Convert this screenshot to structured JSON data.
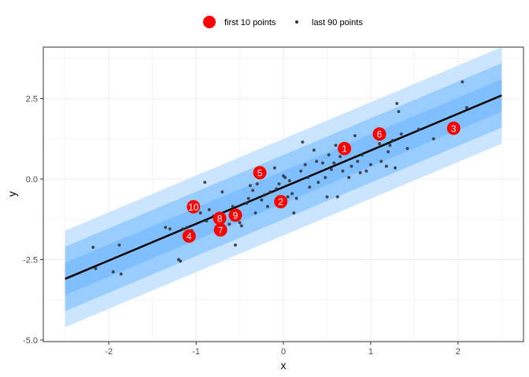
{
  "chart_data": {
    "type": "scatter",
    "title": "",
    "xlabel": "x",
    "ylabel": "y",
    "xlim": [
      -2.75,
      2.75
    ],
    "ylim": [
      -5.05,
      4.1
    ],
    "x_ticks": [
      -2,
      -1,
      0,
      1,
      2
    ],
    "x_tick_labels": [
      "-2",
      "-1",
      "0",
      "1",
      "2"
    ],
    "y_ticks": [
      -5.0,
      -2.5,
      0.0,
      2.5
    ],
    "y_tick_labels": [
      "-5.0",
      "-2.5",
      "0.0",
      "2.5"
    ],
    "grid": true,
    "legend": {
      "placement": "top",
      "entries": [
        "first 10 points",
        "last 90 points"
      ]
    },
    "fit_line": {
      "x": [
        -2.5,
        2.5
      ],
      "y": [
        -3.1,
        2.6
      ]
    },
    "bands": [
      {
        "level": "outer",
        "offset": 1.5
      },
      {
        "level": "middle",
        "offset": 1.0
      },
      {
        "level": "inner",
        "offset": 0.5
      }
    ],
    "series": [
      {
        "name": "first 10 points",
        "points": [
          {
            "label": "1",
            "x": 0.7,
            "y": 0.95
          },
          {
            "label": "2",
            "x": -0.03,
            "y": -0.7
          },
          {
            "label": "3",
            "x": 1.95,
            "y": 1.58
          },
          {
            "label": "4",
            "x": -1.08,
            "y": -1.77
          },
          {
            "label": "5",
            "x": -0.27,
            "y": 0.2
          },
          {
            "label": "6",
            "x": 1.1,
            "y": 1.4
          },
          {
            "label": "7",
            "x": -0.72,
            "y": -1.58
          },
          {
            "label": "8",
            "x": -0.73,
            "y": -1.22
          },
          {
            "label": "9",
            "x": -0.55,
            "y": -1.12
          },
          {
            "label": "10",
            "x": -1.03,
            "y": -0.86
          }
        ]
      },
      {
        "name": "last 90 points",
        "points": [
          [
            -2.18,
            -2.12
          ],
          [
            -2.15,
            -2.78
          ],
          [
            -1.95,
            -2.88
          ],
          [
            -1.88,
            -2.05
          ],
          [
            -1.86,
            -2.95
          ],
          [
            -1.35,
            -1.5
          ],
          [
            -1.3,
            -1.55
          ],
          [
            -1.2,
            -2.5
          ],
          [
            -1.18,
            -2.55
          ],
          [
            -1.15,
            -1.55
          ],
          [
            -1.1,
            -1.5
          ],
          [
            -1.05,
            -1.6
          ],
          [
            -1.0,
            -0.8
          ],
          [
            -0.95,
            -1.05
          ],
          [
            -0.9,
            -0.1
          ],
          [
            -0.88,
            -1.3
          ],
          [
            -0.85,
            -0.95
          ],
          [
            -0.8,
            -1.15
          ],
          [
            -0.75,
            -1.55
          ],
          [
            -0.7,
            -0.4
          ],
          [
            -0.68,
            -1.15
          ],
          [
            -0.62,
            -1.4
          ],
          [
            -0.58,
            -0.85
          ],
          [
            -0.55,
            -2.05
          ],
          [
            -0.5,
            -1.35
          ],
          [
            -0.48,
            -1.45
          ],
          [
            -0.42,
            -0.75
          ],
          [
            -0.4,
            -0.6
          ],
          [
            -0.38,
            -0.2
          ],
          [
            -0.35,
            -0.35
          ],
          [
            -0.32,
            -1.05
          ],
          [
            -0.3,
            -0.15
          ],
          [
            -0.25,
            -0.65
          ],
          [
            -0.22,
            -0.5
          ],
          [
            -0.18,
            -0.85
          ],
          [
            -0.15,
            -0.4
          ],
          [
            -0.1,
            0.35
          ],
          [
            -0.08,
            -0.3
          ],
          [
            -0.05,
            -0.15
          ],
          [
            0.0,
            0.1
          ],
          [
            0.02,
            0.05
          ],
          [
            0.05,
            -0.55
          ],
          [
            0.07,
            -0.05
          ],
          [
            0.1,
            -0.45
          ],
          [
            0.12,
            -1.05
          ],
          [
            0.15,
            -0.6
          ],
          [
            0.2,
            0.25
          ],
          [
            0.22,
            1.15
          ],
          [
            0.25,
            0.45
          ],
          [
            0.28,
            0.05
          ],
          [
            0.3,
            -0.25
          ],
          [
            0.35,
            0.9
          ],
          [
            0.38,
            0.55
          ],
          [
            0.4,
            -0.1
          ],
          [
            0.45,
            0.5
          ],
          [
            0.48,
            0.05
          ],
          [
            0.5,
            -0.55
          ],
          [
            0.52,
            0.75
          ],
          [
            0.55,
            0.3
          ],
          [
            0.58,
            0.5
          ],
          [
            0.6,
            1.05
          ],
          [
            0.62,
            -0.55
          ],
          [
            0.65,
            0.7
          ],
          [
            0.68,
            0.25
          ],
          [
            0.72,
            0.85
          ],
          [
            0.75,
            0.05
          ],
          [
            0.78,
            0.4
          ],
          [
            0.82,
            1.35
          ],
          [
            0.85,
            0.55
          ],
          [
            0.88,
            0.2
          ],
          [
            0.9,
            0.75
          ],
          [
            0.95,
            0.25
          ],
          [
            1.0,
            0.45
          ],
          [
            1.05,
            1.45
          ],
          [
            1.1,
            1.1
          ],
          [
            1.12,
            0.55
          ],
          [
            1.15,
            1.3
          ],
          [
            1.18,
            0.4
          ],
          [
            1.2,
            0.85
          ],
          [
            1.22,
            1.05
          ],
          [
            1.25,
            1.2
          ],
          [
            1.28,
            0.35
          ],
          [
            1.3,
            2.35
          ],
          [
            1.32,
            2.1
          ],
          [
            1.35,
            1.4
          ],
          [
            1.42,
            0.95
          ],
          [
            1.55,
            1.55
          ],
          [
            1.72,
            1.25
          ],
          [
            2.05,
            3.02
          ],
          [
            2.1,
            2.22
          ]
        ]
      }
    ]
  },
  "colors": {
    "band_outer": "#cce5ff",
    "band_middle": "#99ccff",
    "band_inner": "#7fbfff",
    "line": "#000000",
    "highlight_point": "#ff0000",
    "small_point": "#333333",
    "grid": "#ebebeb",
    "panel_border": "#333333"
  }
}
